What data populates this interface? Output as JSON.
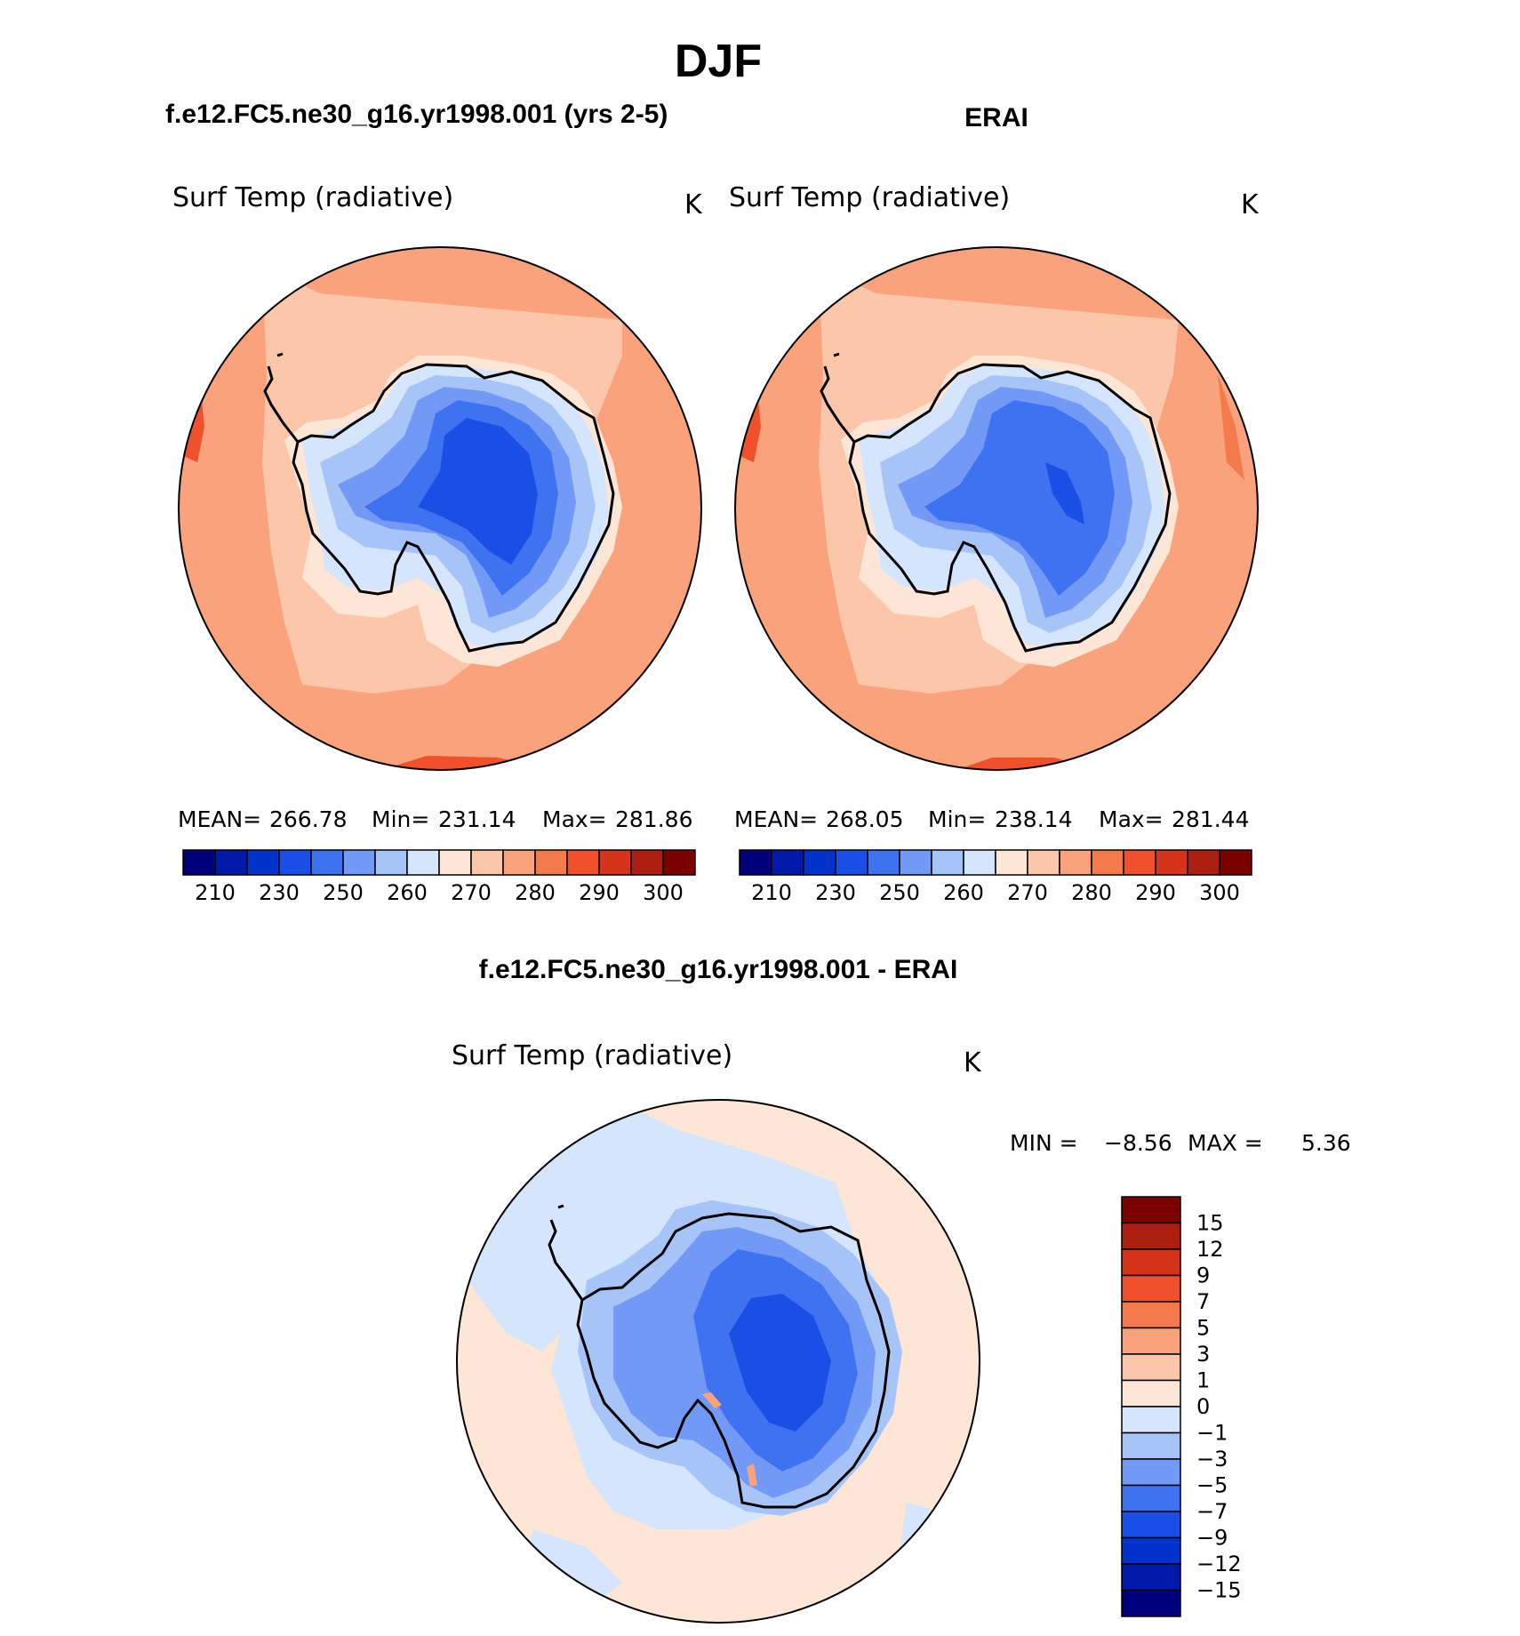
{
  "title": "DJF",
  "panels": [
    {
      "header": "f.e12.FC5.ne30_g16.yr1998.001 (yrs 2-5)",
      "variable": "Surf Temp (radiative)",
      "units": "K",
      "stats": {
        "mean_label": "MEAN=",
        "mean": "266.78",
        "min_label": "Min=",
        "min": "231.14",
        "max_label": "Max=",
        "max": "281.86"
      }
    },
    {
      "header": "ERAI",
      "variable": "Surf Temp (radiative)",
      "units": "K",
      "stats": {
        "mean_label": "MEAN=",
        "mean": "268.05",
        "min_label": "Min=",
        "min": "238.14",
        "max_label": "Max=",
        "max": "281.44"
      }
    }
  ],
  "abs_colorbar": {
    "ticks": [
      "210",
      "230",
      "250",
      "260",
      "270",
      "280",
      "290",
      "300"
    ],
    "colors": [
      "#00007a",
      "#0019a8",
      "#0033cc",
      "#1a4fe6",
      "#3f72f0",
      "#7199f5",
      "#a7c4f8",
      "#d5e5fb",
      "#fde6d6",
      "#fcc6aa",
      "#f9a27b",
      "#f47a4c",
      "#f0502a",
      "#d5331a",
      "#ac1f10",
      "#7a0000"
    ]
  },
  "diff_panel": {
    "header": "f.e12.FC5.ne30_g16.yr1998.001 - ERAI",
    "variable": "Surf Temp (radiative)",
    "units": "K",
    "stats": {
      "min_label": "MIN =",
      "min": "−8.56",
      "max_label": "MAX =",
      "max": "5.36"
    }
  },
  "diff_colorbar": {
    "ticks": [
      "15",
      "12",
      "9",
      "7",
      "5",
      "3",
      "1",
      "0",
      "−1",
      "−3",
      "−5",
      "−7",
      "−9",
      "−12",
      "−15"
    ],
    "colors": [
      "#7a0000",
      "#ac1f10",
      "#d5331a",
      "#f0502a",
      "#f47a4c",
      "#f9a27b",
      "#fcc6aa",
      "#fde6d6",
      "#d5e5fb",
      "#a7c4f8",
      "#7199f5",
      "#3f72f0",
      "#1a4fe6",
      "#0033cc",
      "#0019a8",
      "#00007a"
    ]
  }
}
